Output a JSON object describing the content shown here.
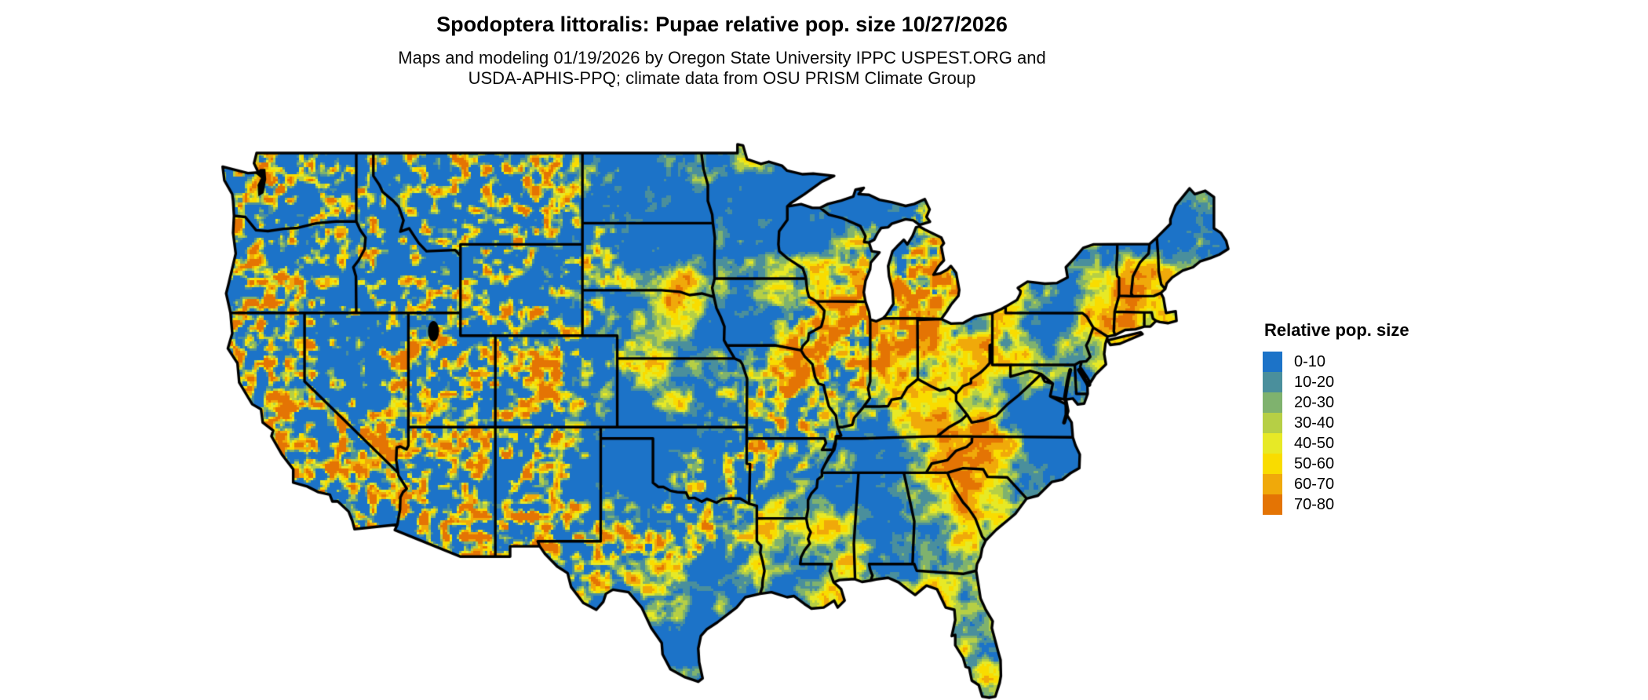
{
  "title": "Spodoptera littoralis: Pupae relative pop. size 10/27/2026",
  "subtitle": {
    "line1": "Maps and modeling 01/19/2026 by Oregon State University IPPC USPEST.ORG and",
    "line2": "USDA-APHIS-PPQ; climate data from OSU PRISM Climate Group"
  },
  "legend": {
    "title": "Relative pop. size",
    "bins": [
      {
        "label": "0-10",
        "color": "#1C73C8"
      },
      {
        "label": "10-20",
        "color": "#4A8F9C"
      },
      {
        "label": "20-30",
        "color": "#7FB26E"
      },
      {
        "label": "30-40",
        "color": "#B6CF45"
      },
      {
        "label": "40-50",
        "color": "#E7E926"
      },
      {
        "label": "50-60",
        "color": "#F9DC00"
      },
      {
        "label": "60-70",
        "color": "#F0A90A"
      },
      {
        "label": "70-80",
        "color": "#E47404"
      }
    ]
  }
}
